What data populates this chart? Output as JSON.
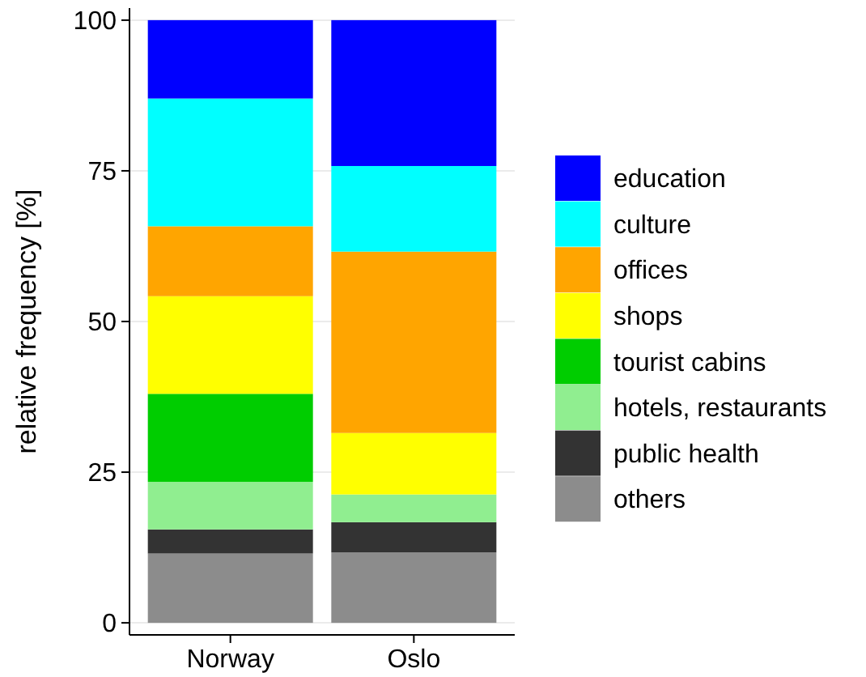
{
  "chart_data": {
    "type": "bar",
    "stacked": true,
    "ylabel": "relative frequency [%]",
    "categories": [
      "Norway",
      "Oslo"
    ],
    "ylim": [
      -2,
      102
    ],
    "yticks": [
      0,
      25,
      50,
      75,
      100
    ],
    "grid": "y",
    "legend": "right",
    "series": [
      {
        "name": "others",
        "color": "#8c8c8c",
        "values": [
          11.5,
          11.7
        ]
      },
      {
        "name": "public health",
        "color": "#333333",
        "values": [
          4.0,
          5.0
        ]
      },
      {
        "name": "hotels, restaurants",
        "color": "#90ee90",
        "values": [
          7.9,
          4.6
        ]
      },
      {
        "name": "tourist cabins",
        "color": "#00cd00",
        "values": [
          14.6,
          0
        ]
      },
      {
        "name": "shops",
        "color": "#ffff00",
        "values": [
          16.2,
          10.2
        ]
      },
      {
        "name": "offices",
        "color": "#ffa500",
        "values": [
          11.6,
          30.1
        ]
      },
      {
        "name": "culture",
        "color": "#00ffff",
        "values": [
          21.2,
          14.2
        ]
      },
      {
        "name": "education",
        "color": "#0000ff",
        "values": [
          13.0,
          24.2
        ]
      }
    ]
  }
}
